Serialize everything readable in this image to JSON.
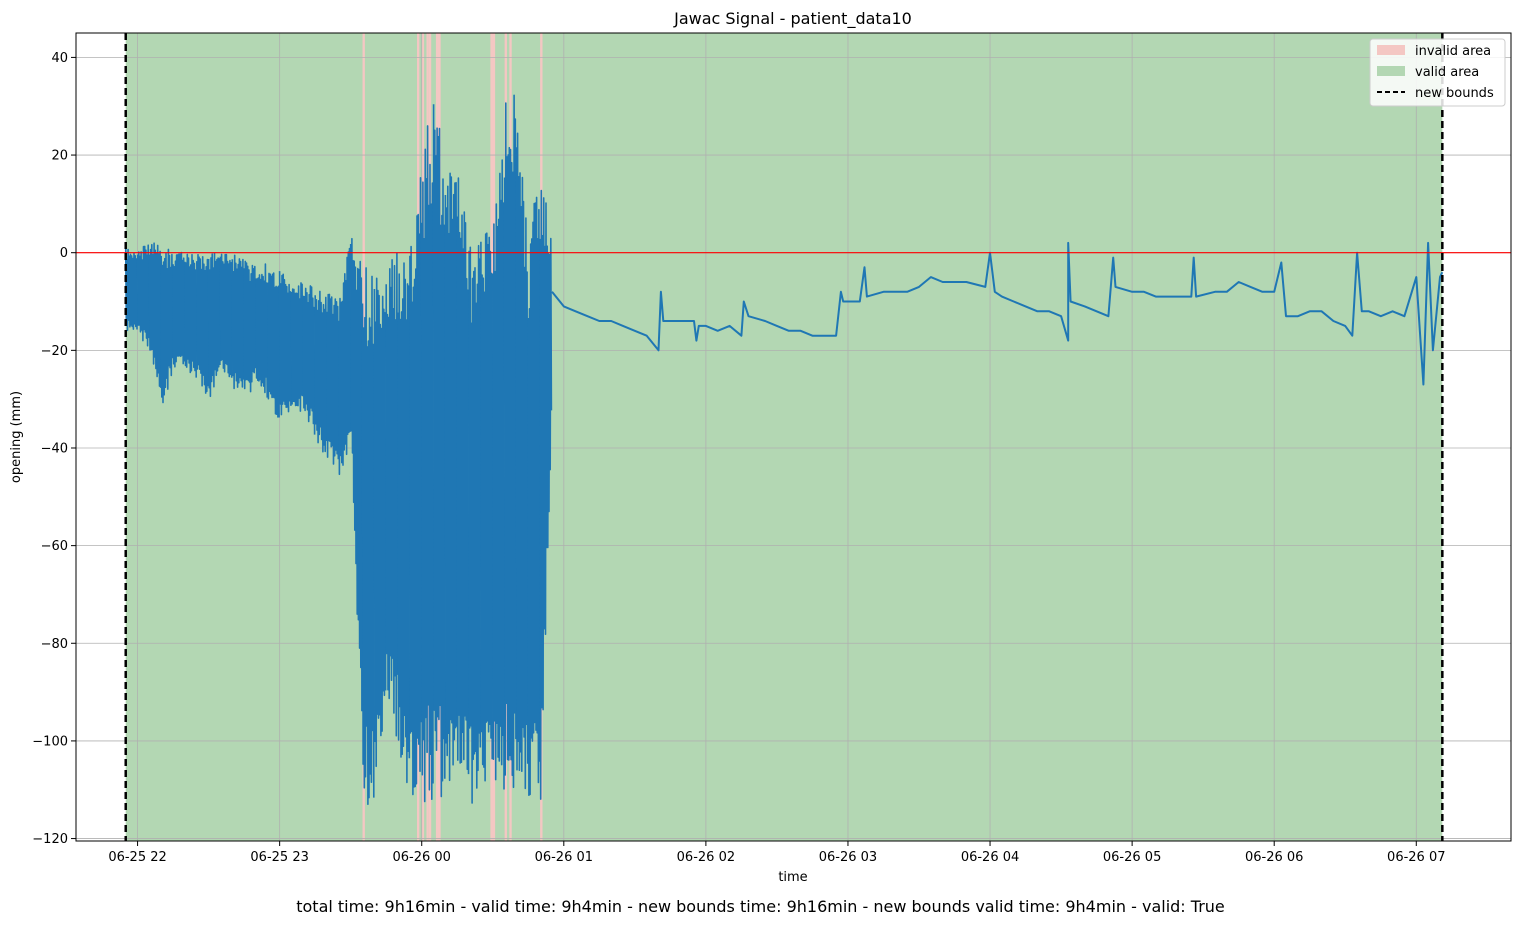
{
  "chart_data": {
    "type": "line",
    "title": "Jawac Signal - patient_data10",
    "xlabel": "time",
    "ylabel": "opening (mm)",
    "xlim": [
      "2024-06-25 21:34",
      "2024-06-26 07:40"
    ],
    "ylim": [
      -120.5,
      45
    ],
    "x_ticks": [
      {
        "t": "2024-06-25 22:00",
        "label": "06-25 22"
      },
      {
        "t": "2024-06-25 23:00",
        "label": "06-25 23"
      },
      {
        "t": "2024-06-26 00:00",
        "label": "06-26 00"
      },
      {
        "t": "2024-06-26 01:00",
        "label": "06-26 01"
      },
      {
        "t": "2024-06-26 02:00",
        "label": "06-26 02"
      },
      {
        "t": "2024-06-26 03:00",
        "label": "06-26 03"
      },
      {
        "t": "2024-06-26 04:00",
        "label": "06-26 04"
      },
      {
        "t": "2024-06-26 05:00",
        "label": "06-26 05"
      },
      {
        "t": "2024-06-26 06:00",
        "label": "06-26 06"
      },
      {
        "t": "2024-06-26 07:00",
        "label": "06-26 07"
      }
    ],
    "y_ticks": [
      40,
      20,
      0,
      -20,
      -40,
      -60,
      -80,
      -100,
      -120
    ],
    "y_tick_labels": [
      "40",
      "20",
      "0",
      "−20",
      "−40",
      "−60",
      "−80",
      "−100",
      "−120"
    ],
    "grid": true,
    "legend_position": "top-right",
    "legend": [
      {
        "label": "invalid area",
        "kind": "patch",
        "color": "#f4c7c3"
      },
      {
        "label": "valid area",
        "kind": "patch",
        "color": "#b3d7b3"
      },
      {
        "label": "new bounds",
        "kind": "dashed",
        "color": "#000000"
      }
    ],
    "reference_line": {
      "y": 0,
      "color": "#ff0000"
    },
    "new_bounds": [
      "2024-06-25 21:55",
      "2024-06-26 07:11"
    ],
    "valid_area": {
      "from": "2024-06-25 21:55",
      "to": "2024-06-26 07:11",
      "color": "#b3d7b3"
    },
    "invalid_areas": [
      {
        "from": "2024-06-25 23:35",
        "to": "2024-06-25 23:36"
      },
      {
        "from": "2024-06-25 23:58",
        "to": "2024-06-25 23:59"
      },
      {
        "from": "2024-06-26 00:00",
        "to": "2024-06-26 00:01"
      },
      {
        "from": "2024-06-26 00:02",
        "to": "2024-06-26 00:03"
      },
      {
        "from": "2024-06-26 00:03",
        "to": "2024-06-26 00:04"
      },
      {
        "from": "2024-06-26 00:06",
        "to": "2024-06-26 00:08"
      },
      {
        "from": "2024-06-26 00:29",
        "to": "2024-06-26 00:31"
      },
      {
        "from": "2024-06-26 00:35",
        "to": "2024-06-26 00:36"
      },
      {
        "from": "2024-06-26 00:37",
        "to": "2024-06-26 00:38"
      },
      {
        "from": "2024-06-26 00:50",
        "to": "2024-06-26 00:51"
      }
    ],
    "invalid_color": "#f4c7c3",
    "series": [
      {
        "color": "#1f77b4",
        "min_max": [
          [
            "2024-06-25 21:55",
            -16,
            1
          ],
          [
            "2024-06-25 22:00",
            -17,
            0
          ],
          [
            "2024-06-25 22:05",
            -20,
            3
          ],
          [
            "2024-06-25 22:10",
            -32,
            2
          ],
          [
            "2024-06-25 22:15",
            -24,
            0
          ],
          [
            "2024-06-25 22:20",
            -24,
            1
          ],
          [
            "2024-06-25 22:25",
            -26,
            0
          ],
          [
            "2024-06-25 22:30",
            -30,
            1
          ],
          [
            "2024-06-25 22:35",
            -25,
            0
          ],
          [
            "2024-06-25 22:40",
            -28,
            0
          ],
          [
            "2024-06-25 22:45",
            -30,
            -1
          ],
          [
            "2024-06-25 22:50",
            -27,
            -3
          ],
          [
            "2024-06-25 22:55",
            -30,
            -2
          ],
          [
            "2024-06-25 23:00",
            -35,
            -3
          ],
          [
            "2024-06-25 23:05",
            -33,
            -6
          ],
          [
            "2024-06-25 23:10",
            -33,
            -6
          ],
          [
            "2024-06-25 23:15",
            -38,
            -7
          ],
          [
            "2024-06-25 23:20",
            -43,
            -8
          ],
          [
            "2024-06-25 23:25",
            -47,
            -10
          ],
          [
            "2024-06-25 23:30",
            -40,
            5
          ],
          [
            "2024-06-25 23:35",
            -113,
            -2
          ],
          [
            "2024-06-25 23:40",
            -113,
            -4
          ],
          [
            "2024-06-25 23:45",
            -91,
            -2
          ],
          [
            "2024-06-25 23:50",
            -102,
            1
          ],
          [
            "2024-06-25 23:55",
            -113,
            2
          ],
          [
            "2024-06-26 00:00",
            -113,
            20
          ],
          [
            "2024-06-26 00:05",
            -113,
            33
          ],
          [
            "2024-06-26 00:10",
            -113,
            19
          ],
          [
            "2024-06-26 00:15",
            -113,
            18
          ],
          [
            "2024-06-26 00:20",
            -113,
            2
          ],
          [
            "2024-06-26 00:25",
            -113,
            5
          ],
          [
            "2024-06-26 00:30",
            -113,
            4
          ],
          [
            "2024-06-26 00:35",
            -113,
            31
          ],
          [
            "2024-06-26 00:40",
            -113,
            37
          ],
          [
            "2024-06-26 00:45",
            -113,
            2
          ],
          [
            "2024-06-26 00:50",
            -113,
            22
          ],
          [
            "2024-06-26 00:55",
            -30,
            1
          ]
        ],
        "points": [
          [
            "2024-06-26 00:55",
            -8
          ],
          [
            "2024-06-26 01:00",
            -11
          ],
          [
            "2024-06-26 01:05",
            -12
          ],
          [
            "2024-06-26 01:10",
            -13
          ],
          [
            "2024-06-26 01:15",
            -14
          ],
          [
            "2024-06-26 01:20",
            -14
          ],
          [
            "2024-06-26 01:25",
            -15
          ],
          [
            "2024-06-26 01:30",
            -16
          ],
          [
            "2024-06-26 01:35",
            -17
          ],
          [
            "2024-06-26 01:40",
            -20
          ],
          [
            "2024-06-26 01:41",
            -8
          ],
          [
            "2024-06-26 01:42",
            -14
          ],
          [
            "2024-06-26 01:50",
            -14
          ],
          [
            "2024-06-26 01:55",
            -14
          ],
          [
            "2024-06-26 01:56",
            -18
          ],
          [
            "2024-06-26 01:57",
            -15
          ],
          [
            "2024-06-26 02:00",
            -15
          ],
          [
            "2024-06-26 02:05",
            -16
          ],
          [
            "2024-06-26 02:10",
            -15
          ],
          [
            "2024-06-26 02:15",
            -17
          ],
          [
            "2024-06-26 02:16",
            -10
          ],
          [
            "2024-06-26 02:18",
            -13
          ],
          [
            "2024-06-26 02:25",
            -14
          ],
          [
            "2024-06-26 02:30",
            -15
          ],
          [
            "2024-06-26 02:35",
            -16
          ],
          [
            "2024-06-26 02:40",
            -16
          ],
          [
            "2024-06-26 02:45",
            -17
          ],
          [
            "2024-06-26 02:50",
            -17
          ],
          [
            "2024-06-26 02:55",
            -17
          ],
          [
            "2024-06-26 02:57",
            -8
          ],
          [
            "2024-06-26 02:58",
            -10
          ],
          [
            "2024-06-26 03:05",
            -10
          ],
          [
            "2024-06-26 03:07",
            -3
          ],
          [
            "2024-06-26 03:08",
            -9
          ],
          [
            "2024-06-26 03:15",
            -8
          ],
          [
            "2024-06-26 03:20",
            -8
          ],
          [
            "2024-06-26 03:25",
            -8
          ],
          [
            "2024-06-26 03:30",
            -7
          ],
          [
            "2024-06-26 03:35",
            -5
          ],
          [
            "2024-06-26 03:40",
            -6
          ],
          [
            "2024-06-26 03:45",
            -6
          ],
          [
            "2024-06-26 03:50",
            -6
          ],
          [
            "2024-06-26 03:58",
            -7
          ],
          [
            "2024-06-26 04:00",
            0
          ],
          [
            "2024-06-26 04:02",
            -8
          ],
          [
            "2024-06-26 04:05",
            -9
          ],
          [
            "2024-06-26 04:10",
            -10
          ],
          [
            "2024-06-26 04:15",
            -11
          ],
          [
            "2024-06-26 04:20",
            -12
          ],
          [
            "2024-06-26 04:25",
            -12
          ],
          [
            "2024-06-26 04:30",
            -13
          ],
          [
            "2024-06-26 04:33",
            -18
          ],
          [
            "2024-06-26 04:33",
            2
          ],
          [
            "2024-06-26 04:34",
            -10
          ],
          [
            "2024-06-26 04:40",
            -11
          ],
          [
            "2024-06-26 04:45",
            -12
          ],
          [
            "2024-06-26 04:50",
            -13
          ],
          [
            "2024-06-26 04:52",
            -1
          ],
          [
            "2024-06-26 04:53",
            -7
          ],
          [
            "2024-06-26 05:00",
            -8
          ],
          [
            "2024-06-26 05:05",
            -8
          ],
          [
            "2024-06-26 05:10",
            -9
          ],
          [
            "2024-06-26 05:15",
            -9
          ],
          [
            "2024-06-26 05:20",
            -9
          ],
          [
            "2024-06-26 05:25",
            -9
          ],
          [
            "2024-06-26 05:26",
            -1
          ],
          [
            "2024-06-26 05:27",
            -9
          ],
          [
            "2024-06-26 05:35",
            -8
          ],
          [
            "2024-06-26 05:40",
            -8
          ],
          [
            "2024-06-26 05:45",
            -6
          ],
          [
            "2024-06-26 05:50",
            -7
          ],
          [
            "2024-06-26 05:55",
            -8
          ],
          [
            "2024-06-26 06:00",
            -8
          ],
          [
            "2024-06-26 06:03",
            -2
          ],
          [
            "2024-06-26 06:05",
            -13
          ],
          [
            "2024-06-26 06:10",
            -13
          ],
          [
            "2024-06-26 06:15",
            -12
          ],
          [
            "2024-06-26 06:20",
            -12
          ],
          [
            "2024-06-26 06:25",
            -14
          ],
          [
            "2024-06-26 06:30",
            -15
          ],
          [
            "2024-06-26 06:33",
            -17
          ],
          [
            "2024-06-26 06:35",
            0
          ],
          [
            "2024-06-26 06:37",
            -12
          ],
          [
            "2024-06-26 06:40",
            -12
          ],
          [
            "2024-06-26 06:45",
            -13
          ],
          [
            "2024-06-26 06:50",
            -12
          ],
          [
            "2024-06-26 06:55",
            -13
          ],
          [
            "2024-06-26 07:00",
            -5
          ],
          [
            "2024-06-26 07:03",
            -27
          ],
          [
            "2024-06-26 07:05",
            2
          ],
          [
            "2024-06-26 07:07",
            -20
          ],
          [
            "2024-06-26 07:10",
            -5
          ],
          [
            "2024-06-26 07:11",
            -4
          ]
        ]
      }
    ]
  },
  "summary": "total time: 9h16min - valid time: 9h4min - new bounds time: 9h16min - new bounds valid time: 9h4min - valid: True"
}
